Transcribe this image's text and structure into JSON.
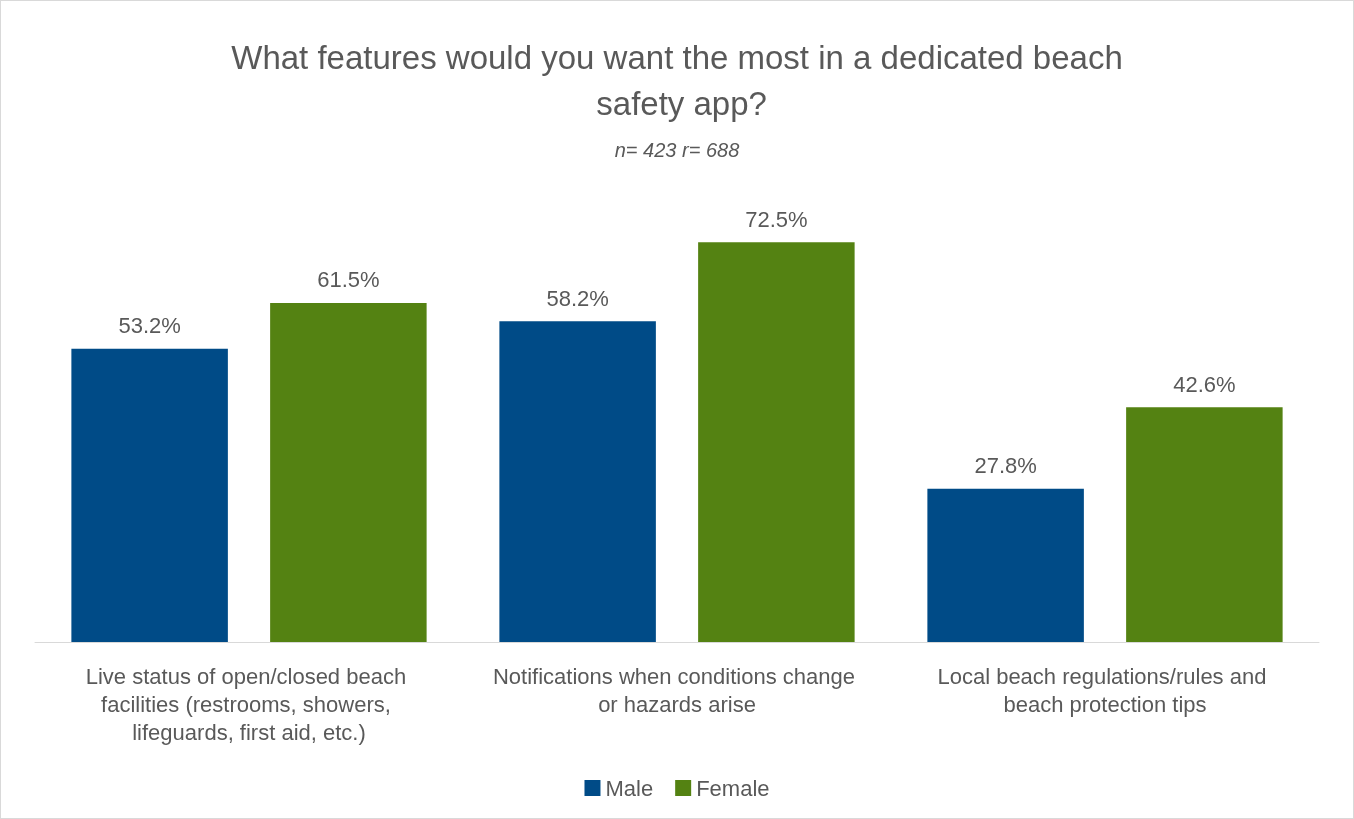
{
  "chart_data": {
    "type": "bar",
    "title": "What features would you want the most in a dedicated beach safety app?",
    "subtitle": "n= 423 r= 688",
    "categories": [
      "Live status of open/closed beach facilities (restrooms, showers, lifeguards, first aid, etc.)",
      "Notifications when conditions change or hazards arise",
      "Local beach regulations/rules and beach protection tips"
    ],
    "series": [
      {
        "name": "Male",
        "color": "#004b87",
        "values": [
          53.2,
          58.2,
          27.8
        ],
        "value_labels": [
          "53.2%",
          "58.2%",
          "27.8%"
        ]
      },
      {
        "name": "Female",
        "color": "#548212",
        "values": [
          61.5,
          72.5,
          42.6
        ],
        "value_labels": [
          "61.5%",
          "72.5%",
          "42.6%"
        ]
      }
    ],
    "legend": "bottom",
    "grid": false
  }
}
